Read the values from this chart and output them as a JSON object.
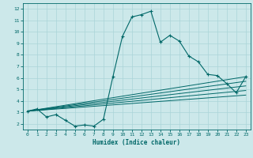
{
  "xlabel": "Humidex (Indice chaleur)",
  "xlim": [
    -0.5,
    23.5
  ],
  "ylim": [
    1.5,
    12.5
  ],
  "xticks": [
    0,
    1,
    2,
    3,
    4,
    5,
    6,
    7,
    8,
    9,
    10,
    11,
    12,
    13,
    14,
    15,
    16,
    17,
    18,
    19,
    20,
    21,
    22,
    23
  ],
  "yticks": [
    2,
    3,
    4,
    5,
    6,
    7,
    8,
    9,
    10,
    11,
    12
  ],
  "bg_color": "#cce8ea",
  "grid_color": "#aad4d8",
  "line_color": "#006868",
  "main_x": [
    0,
    1,
    2,
    3,
    4,
    5,
    6,
    7,
    8,
    9,
    10,
    11,
    12,
    13,
    14,
    15,
    16,
    17,
    18,
    19,
    20,
    21,
    22,
    23
  ],
  "main_y": [
    3.1,
    3.3,
    2.6,
    2.8,
    2.3,
    1.8,
    1.9,
    1.8,
    2.4,
    6.1,
    9.6,
    11.3,
    11.5,
    11.8,
    9.1,
    9.7,
    9.2,
    7.9,
    7.4,
    6.3,
    6.2,
    5.5,
    4.7,
    6.1
  ],
  "band_lines": [
    {
      "x": [
        0,
        23
      ],
      "y": [
        3.1,
        6.1
      ]
    },
    {
      "x": [
        0,
        23
      ],
      "y": [
        3.1,
        5.7
      ]
    },
    {
      "x": [
        0,
        23
      ],
      "y": [
        3.1,
        5.3
      ]
    },
    {
      "x": [
        0,
        23
      ],
      "y": [
        3.1,
        4.9
      ]
    },
    {
      "x": [
        0,
        23
      ],
      "y": [
        3.1,
        4.5
      ]
    }
  ]
}
